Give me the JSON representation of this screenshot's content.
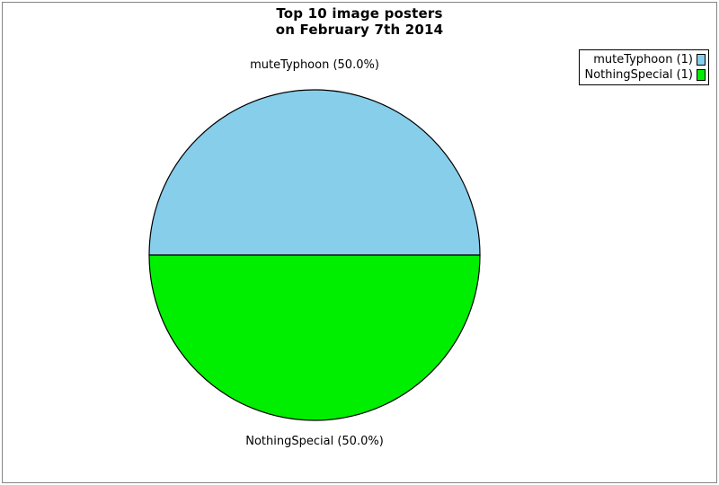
{
  "frame": {
    "border_color": "#858585",
    "background": "#ffffff"
  },
  "title": {
    "line1": "Top 10 image posters",
    "line2": "on February 7th 2014"
  },
  "chart_data": {
    "type": "pie",
    "title": "Top 10 image posters on February 7th 2014",
    "start_angle_deg": 180,
    "direction": "clockwise",
    "total": 2,
    "outline_color": "#000000",
    "slices": [
      {
        "label": "muteTyphoon",
        "value": 1,
        "percent": 50.0,
        "color": "#87CEEB",
        "callout": "muteTyphoon (50.0%)",
        "legend_label": "muteTyphoon (1)"
      },
      {
        "label": "NothingSpecial",
        "value": 1,
        "percent": 50.0,
        "color": "#00EE00",
        "callout": "NothingSpecial (50.0%)",
        "legend_label": "NothingSpecial (1)"
      }
    ],
    "legend": {
      "position": "top-right",
      "background": "#ffffff",
      "border_color": "#000000"
    }
  }
}
